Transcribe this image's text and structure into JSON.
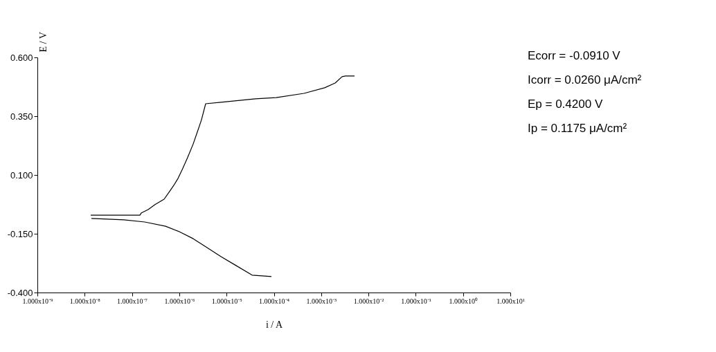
{
  "chart_data": {
    "type": "line",
    "xlabel": "i / A",
    "ylabel": "E / V",
    "log": "x",
    "grid": false,
    "legend": false,
    "marker": "none",
    "line_style": "solid",
    "xlim": [
      1e-09,
      10
    ],
    "ylim": [
      -0.4,
      0.6
    ],
    "xticks": [
      {
        "value": 1e-09,
        "label": "1.000x10⁻⁹"
      },
      {
        "value": 1e-08,
        "label": "1.000x10⁻⁸"
      },
      {
        "value": 1e-07,
        "label": "1.000x10⁻⁷"
      },
      {
        "value": 1e-06,
        "label": "1.000x10⁻⁶"
      },
      {
        "value": 1e-05,
        "label": "1.000x10⁻⁵"
      },
      {
        "value": 0.0001,
        "label": "1.000x10⁻⁴"
      },
      {
        "value": 0.001,
        "label": "1.000x10⁻³"
      },
      {
        "value": 0.01,
        "label": "1.000x10⁻²"
      },
      {
        "value": 0.1,
        "label": "1.000x10⁻¹"
      },
      {
        "value": 1,
        "label": "1.000x10⁰"
      },
      {
        "value": 10,
        "label": "1.000x10¹"
      }
    ],
    "yticks": [
      {
        "value": -0.4,
        "label": "-0.400"
      },
      {
        "value": -0.15,
        "label": "-0.150"
      },
      {
        "value": 0.1,
        "label": "0.100"
      },
      {
        "value": 0.35,
        "label": "0.350"
      },
      {
        "value": 0.6,
        "label": "0.600"
      }
    ],
    "series": [
      {
        "color": "#000000",
        "x": [
          1.34e-08,
          1.47e-07,
          1.57e-07,
          2.2e-07,
          3.08e-07,
          4.78e-07,
          6.05e-07,
          7.66e-07,
          9.38e-07,
          1.19e-06,
          1.5e-06,
          1.97e-06,
          2.49e-06,
          2.95e-06,
          3.61e-06,
          7.59e-06,
          4.09e-05,
          0.000112,
          0.000434,
          0.00119,
          0.00198,
          0.00277,
          0.00327,
          0.00508
        ],
        "values": [
          -0.071,
          -0.071,
          -0.062,
          -0.047,
          -0.026,
          -0.003,
          0.026,
          0.056,
          0.085,
          0.129,
          0.174,
          0.232,
          0.291,
          0.335,
          0.403,
          0.409,
          0.424,
          0.429,
          0.447,
          0.471,
          0.491,
          0.518,
          0.521,
          0.521
        ]
      },
      {
        "color": "#000000",
        "x": [
          1.39e-08,
          6.76e-08,
          1.86e-07,
          5.12e-07,
          1e-06,
          1.97e-06,
          3.86e-06,
          7.59e-06,
          1.49e-05,
          3.46e-05,
          8.89e-05
        ],
        "values": [
          -0.085,
          -0.091,
          -0.1,
          -0.118,
          -0.141,
          -0.171,
          -0.209,
          -0.247,
          -0.282,
          -0.326,
          -0.332
        ]
      }
    ],
    "annotations": [
      "Ecorr = -0.0910 V",
      "Icorr = 0.0260 μA/cm²",
      "Ep = 0.4200 V",
      "Ip = 0.1175 μA/cm²"
    ]
  }
}
